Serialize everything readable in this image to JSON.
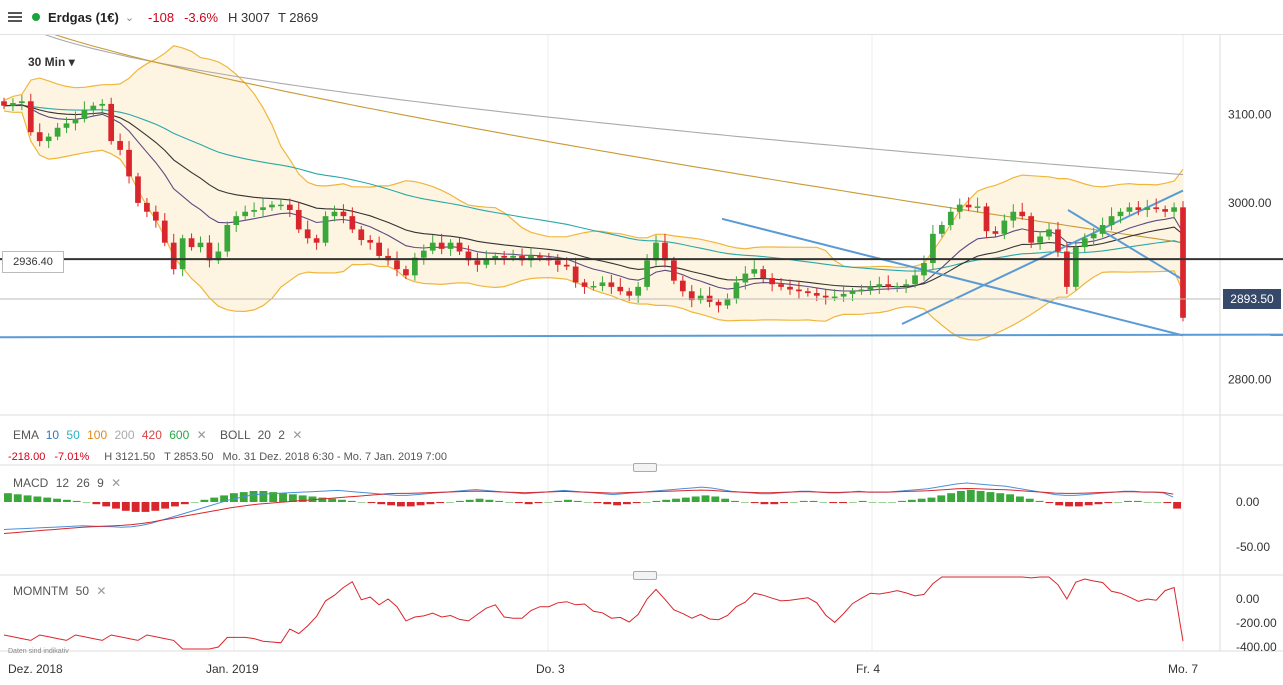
{
  "header": {
    "instrument": "Erdgas (1€)",
    "change_abs": "-108",
    "change_pct": "-3.6%",
    "high": "H 3007",
    "low": "T 2869"
  },
  "toolbar": {
    "timeframe": "30 Min"
  },
  "price_axis": {
    "ticks": [
      "3100.00",
      "3000.00",
      "2800.00"
    ]
  },
  "price_labels": {
    "crosshair": "2936.40",
    "last": "2893.50"
  },
  "indicators": {
    "ema_label": "EMA",
    "ema_periods": [
      "10",
      "50",
      "100",
      "200",
      "420",
      "600"
    ],
    "ema_colors": [
      "#2b79c2",
      "#2ab5c8",
      "#e08a1e",
      "#aaaaaa",
      "#d94343",
      "#27a84a"
    ],
    "boll_label": "BOLL",
    "boll_params": [
      "20",
      "2"
    ],
    "stats": {
      "abs": "-218.00",
      "pct": "-7.01%",
      "high": "H 3121.50",
      "low": "T 2853.50",
      "range": "Mo. 31 Dez. 2018 6:30 - Mo. 7 Jan. 2019 7:00"
    }
  },
  "macd": {
    "label": "MACD",
    "params": [
      "12",
      "26",
      "9"
    ],
    "ticks": [
      "0.00",
      "-50.00"
    ]
  },
  "momentum": {
    "label": "MOMNTM",
    "params": [
      "50"
    ],
    "ticks": [
      "0.00",
      "-200.00",
      "-400.00"
    ]
  },
  "disclaimer": "Daten sind indikativ",
  "x_axis": {
    "labels": [
      "Dez. 2018",
      "Jan. 2019",
      "Do. 3",
      "Fr. 4",
      "Mo. 7"
    ]
  },
  "colors": {
    "up": "#3aa73a",
    "down": "#d9262c",
    "trend": "#5b9bd5",
    "boll": "#f0b63c"
  },
  "chart_data": {
    "type": "candlestick",
    "y_range": [
      2760,
      3190
    ],
    "horizontal_line": 2936.4,
    "support_line": [
      2848,
      2851
    ],
    "closes": [
      3110,
      3113,
      3115,
      3080,
      3070,
      3075,
      3085,
      3090,
      3095,
      3105,
      3110,
      3112,
      3070,
      3060,
      3030,
      3000,
      2990,
      2980,
      2955,
      2925,
      2960,
      2950,
      2955,
      2935,
      2945,
      2975,
      2985,
      2990,
      2992,
      2995,
      2998,
      2998,
      2992,
      2970,
      2960,
      2955,
      2985,
      2990,
      2985,
      2970,
      2958,
      2955,
      2940,
      2935,
      2925,
      2918,
      2938,
      2946,
      2955,
      2948,
      2955,
      2945,
      2935,
      2930,
      2936,
      2940,
      2938,
      2940,
      2935,
      2940,
      2938,
      2935,
      2930,
      2928,
      2910,
      2905,
      2906,
      2910,
      2905,
      2900,
      2895,
      2905,
      2935,
      2955,
      2935,
      2912,
      2900,
      2890,
      2895,
      2888,
      2884,
      2892,
      2910,
      2920,
      2925,
      2915,
      2908,
      2905,
      2902,
      2900,
      2898,
      2895,
      2893,
      2894,
      2897,
      2900,
      2902,
      2905,
      2908,
      2905,
      2906,
      2908,
      2918,
      2932,
      2965,
      2975,
      2990,
      2998,
      2995,
      2996,
      2968,
      2965,
      2980,
      2990,
      2985,
      2955,
      2962,
      2970,
      2945,
      2905,
      2950,
      2960,
      2965,
      2975,
      2985,
      2990,
      2995,
      2992,
      2995,
      2993,
      2990,
      2995,
      2870
    ],
    "ema_fast_end": 2970,
    "boll_upper_end": 3025,
    "boll_lower_end": 2935
  },
  "macd_data": {
    "histogram": [
      8,
      7,
      6,
      5,
      4,
      3,
      2,
      1,
      0,
      -2,
      -4,
      -6,
      -8,
      -9,
      -9,
      -8,
      -6,
      -4,
      -2,
      0,
      2,
      4,
      6,
      8,
      9,
      10,
      10,
      9,
      8,
      7,
      6,
      5,
      4,
      3,
      2,
      1,
      0,
      -1,
      -2,
      -3,
      -4,
      -4,
      -3,
      -2,
      -1,
      0,
      1,
      2,
      3,
      2,
      1,
      0,
      -1,
      -2,
      -1,
      0,
      1,
      2,
      1,
      0,
      -1,
      -2,
      -3,
      -2,
      -1,
      0,
      1,
      2,
      3,
      4,
      5,
      6,
      5,
      3,
      1,
      0,
      -1,
      -2,
      -2,
      -1,
      0,
      1,
      1,
      0,
      -1,
      -1,
      0,
      1,
      0,
      0,
      0,
      1,
      2,
      3,
      4,
      6,
      8,
      10,
      11,
      10,
      9,
      8,
      7,
      5,
      3,
      1,
      -1,
      -3,
      -4,
      -4,
      -3,
      -2,
      -1,
      0,
      1,
      1,
      0,
      0,
      -1,
      -6
    ]
  },
  "momentum_data": {
    "range": [
      -420,
      50
    ]
  }
}
